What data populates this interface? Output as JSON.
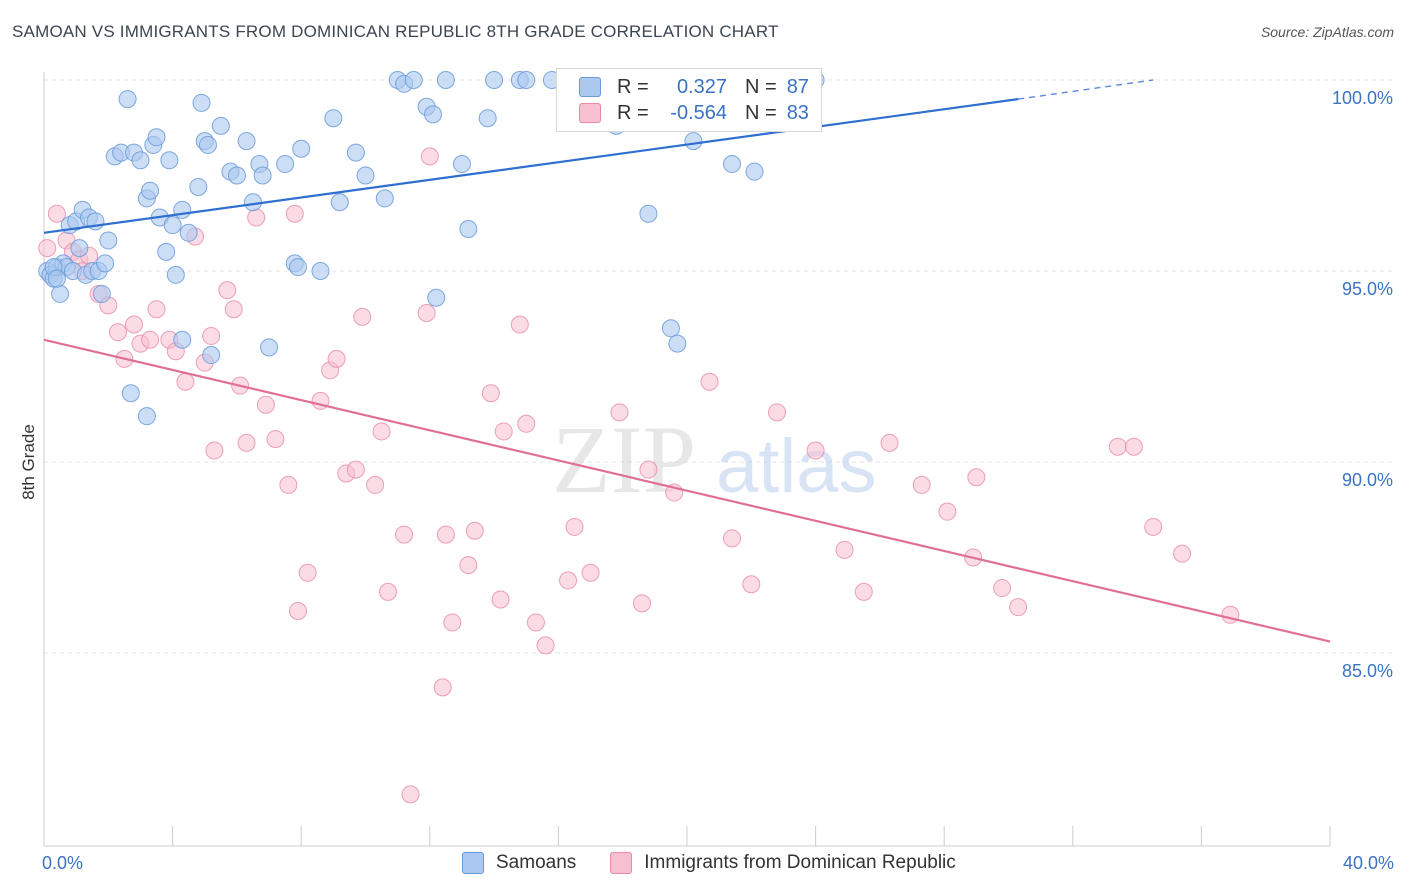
{
  "title": "SAMOAN VS IMMIGRANTS FROM DOMINICAN REPUBLIC 8TH GRADE CORRELATION CHART",
  "source": "Source: ZipAtlas.com",
  "watermark": {
    "part1": "ZIP",
    "part2": "atlas"
  },
  "legend_top": {
    "r_label": "R =",
    "n_label": "N =",
    "rows": [
      {
        "r": "0.327",
        "n": "87"
      },
      {
        "r": "-0.564",
        "n": "83"
      }
    ]
  },
  "colors": {
    "blue_fill": "#aac8f0",
    "blue_stroke": "#6a9ad8",
    "blue_line": "#2f6fd0",
    "pink_fill": "#f7bfd0",
    "pink_stroke": "#e88aa8",
    "pink_line": "#e06f98",
    "axis_text": "#3b73c4",
    "grid": "#e3e3e3"
  },
  "chart_data": {
    "type": "scatter",
    "title": "SAMOAN VS IMMIGRANTS FROM DOMINICAN REPUBLIC 8TH GRADE CORRELATION CHART",
    "ylabel": "8th Grade",
    "xlabel": "",
    "x_tick_labels": [
      "0.0%",
      "40.0%"
    ],
    "y_tick_labels": [
      "100.0%",
      "95.0%",
      "90.0%",
      "85.0%"
    ],
    "y_ticks": [
      100,
      95,
      90,
      85
    ],
    "xlim": [
      0,
      40
    ],
    "ylim": [
      80,
      100.2
    ],
    "grid": true,
    "legend_position": "top-center",
    "series": [
      {
        "name": "Samoans",
        "color": "#aac8f0",
        "r": 0.327,
        "n": 87,
        "trend": {
          "x": [
            0,
            30.3
          ],
          "y": [
            96.0,
            99.5
          ],
          "dashed_to": [
            34.5,
            100.0
          ]
        },
        "points": [
          [
            0.1,
            95.0
          ],
          [
            0.2,
            94.9
          ],
          [
            0.3,
            94.8
          ],
          [
            0.4,
            95.1
          ],
          [
            0.5,
            94.4
          ],
          [
            0.6,
            95.2
          ],
          [
            0.7,
            95.1
          ],
          [
            0.8,
            96.2
          ],
          [
            0.9,
            95.0
          ],
          [
            1.0,
            96.3
          ],
          [
            1.1,
            95.6
          ],
          [
            1.2,
            96.6
          ],
          [
            1.3,
            94.9
          ],
          [
            1.4,
            96.4
          ],
          [
            1.5,
            95.0
          ],
          [
            1.6,
            96.3
          ],
          [
            1.7,
            95.0
          ],
          [
            1.8,
            94.4
          ],
          [
            1.9,
            95.2
          ],
          [
            2.0,
            95.8
          ],
          [
            2.2,
            98.0
          ],
          [
            2.4,
            98.1
          ],
          [
            2.6,
            99.5
          ],
          [
            2.8,
            98.1
          ],
          [
            3.0,
            97.9
          ],
          [
            3.2,
            96.9
          ],
          [
            3.3,
            97.1
          ],
          [
            3.4,
            98.3
          ],
          [
            3.5,
            98.5
          ],
          [
            3.6,
            96.4
          ],
          [
            3.8,
            95.5
          ],
          [
            3.9,
            97.9
          ],
          [
            4.0,
            96.2
          ],
          [
            4.1,
            94.9
          ],
          [
            4.3,
            96.6
          ],
          [
            4.5,
            96.0
          ],
          [
            4.8,
            97.2
          ],
          [
            4.9,
            99.4
          ],
          [
            5.0,
            98.4
          ],
          [
            5.1,
            98.3
          ],
          [
            5.5,
            98.8
          ],
          [
            5.8,
            97.6
          ],
          [
            6.0,
            97.5
          ],
          [
            6.3,
            98.4
          ],
          [
            6.5,
            96.8
          ],
          [
            6.7,
            97.8
          ],
          [
            6.8,
            97.5
          ],
          [
            7.5,
            97.8
          ],
          [
            7.8,
            95.2
          ],
          [
            7.9,
            95.1
          ],
          [
            8.0,
            98.2
          ],
          [
            8.6,
            95.0
          ],
          [
            9.0,
            99.0
          ],
          [
            9.7,
            98.1
          ],
          [
            9.2,
            96.8
          ],
          [
            10.0,
            97.5
          ],
          [
            10.6,
            96.9
          ],
          [
            11.0,
            100.0
          ],
          [
            11.2,
            99.9
          ],
          [
            11.5,
            100.0
          ],
          [
            11.9,
            99.3
          ],
          [
            12.1,
            99.1
          ],
          [
            12.2,
            94.3
          ],
          [
            12.5,
            100.0
          ],
          [
            13.0,
            97.8
          ],
          [
            13.2,
            96.1
          ],
          [
            13.8,
            99.0
          ],
          [
            14.0,
            100.0
          ],
          [
            14.8,
            100.0
          ],
          [
            15.0,
            100.0
          ],
          [
            15.8,
            100.0
          ],
          [
            17.8,
            98.8
          ],
          [
            18.8,
            96.5
          ],
          [
            19.5,
            93.5
          ],
          [
            19.7,
            93.1
          ],
          [
            20.2,
            98.4
          ],
          [
            21.4,
            97.8
          ],
          [
            22.1,
            97.6
          ],
          [
            24.0,
            100.0
          ],
          [
            4.3,
            93.2
          ],
          [
            5.2,
            92.8
          ],
          [
            7.0,
            93.0
          ],
          [
            2.7,
            91.8
          ],
          [
            3.2,
            91.2
          ],
          [
            0.3,
            95.1
          ],
          [
            0.4,
            94.8
          ]
        ]
      },
      {
        "name": "Immigrants from Dominican Republic",
        "color": "#f7bfd0",
        "r": -0.564,
        "n": 83,
        "trend": {
          "x": [
            0,
            40
          ],
          "y": [
            93.2,
            85.3
          ]
        },
        "points": [
          [
            0.1,
            95.6
          ],
          [
            0.4,
            96.5
          ],
          [
            0.7,
            95.8
          ],
          [
            0.9,
            95.5
          ],
          [
            1.1,
            95.3
          ],
          [
            1.2,
            95.0
          ],
          [
            1.4,
            95.4
          ],
          [
            1.7,
            94.4
          ],
          [
            2.0,
            94.1
          ],
          [
            2.3,
            93.4
          ],
          [
            2.5,
            92.7
          ],
          [
            2.8,
            93.6
          ],
          [
            3.0,
            93.1
          ],
          [
            3.3,
            93.2
          ],
          [
            3.5,
            94.0
          ],
          [
            3.9,
            93.2
          ],
          [
            4.1,
            92.9
          ],
          [
            4.4,
            92.1
          ],
          [
            4.7,
            95.9
          ],
          [
            5.0,
            92.6
          ],
          [
            5.2,
            93.3
          ],
          [
            5.3,
            90.3
          ],
          [
            5.7,
            94.5
          ],
          [
            5.9,
            94.0
          ],
          [
            6.1,
            92.0
          ],
          [
            6.3,
            90.5
          ],
          [
            6.6,
            96.4
          ],
          [
            6.9,
            91.5
          ],
          [
            7.2,
            90.6
          ],
          [
            7.6,
            89.4
          ],
          [
            7.8,
            96.5
          ],
          [
            7.9,
            86.1
          ],
          [
            8.2,
            87.1
          ],
          [
            8.6,
            91.6
          ],
          [
            8.9,
            92.4
          ],
          [
            9.1,
            92.7
          ],
          [
            9.4,
            89.7
          ],
          [
            9.7,
            89.8
          ],
          [
            9.9,
            93.8
          ],
          [
            10.3,
            89.4
          ],
          [
            10.5,
            90.8
          ],
          [
            10.7,
            86.6
          ],
          [
            11.2,
            88.1
          ],
          [
            11.4,
            81.3
          ],
          [
            11.9,
            93.9
          ],
          [
            12.0,
            98.0
          ],
          [
            12.4,
            84.1
          ],
          [
            12.5,
            88.1
          ],
          [
            12.7,
            85.8
          ],
          [
            13.2,
            87.3
          ],
          [
            13.4,
            88.2
          ],
          [
            13.9,
            91.8
          ],
          [
            14.2,
            86.4
          ],
          [
            14.3,
            90.8
          ],
          [
            14.8,
            93.6
          ],
          [
            15.0,
            91.0
          ],
          [
            15.3,
            85.8
          ],
          [
            15.6,
            85.2
          ],
          [
            16.3,
            86.9
          ],
          [
            16.5,
            88.3
          ],
          [
            17.0,
            87.1
          ],
          [
            17.9,
            91.3
          ],
          [
            18.6,
            86.3
          ],
          [
            18.8,
            89.8
          ],
          [
            19.6,
            89.2
          ],
          [
            20.7,
            92.1
          ],
          [
            21.4,
            88.0
          ],
          [
            22.0,
            86.8
          ],
          [
            22.8,
            91.3
          ],
          [
            24.0,
            90.3
          ],
          [
            24.9,
            87.7
          ],
          [
            25.5,
            86.6
          ],
          [
            26.3,
            90.5
          ],
          [
            27.3,
            89.4
          ],
          [
            28.1,
            88.7
          ],
          [
            28.9,
            87.5
          ],
          [
            29.0,
            89.6
          ],
          [
            29.8,
            86.7
          ],
          [
            30.3,
            86.2
          ],
          [
            33.4,
            90.4
          ],
          [
            33.9,
            90.4
          ],
          [
            34.5,
            88.3
          ],
          [
            35.4,
            87.6
          ],
          [
            36.9,
            86.0
          ]
        ]
      }
    ]
  }
}
